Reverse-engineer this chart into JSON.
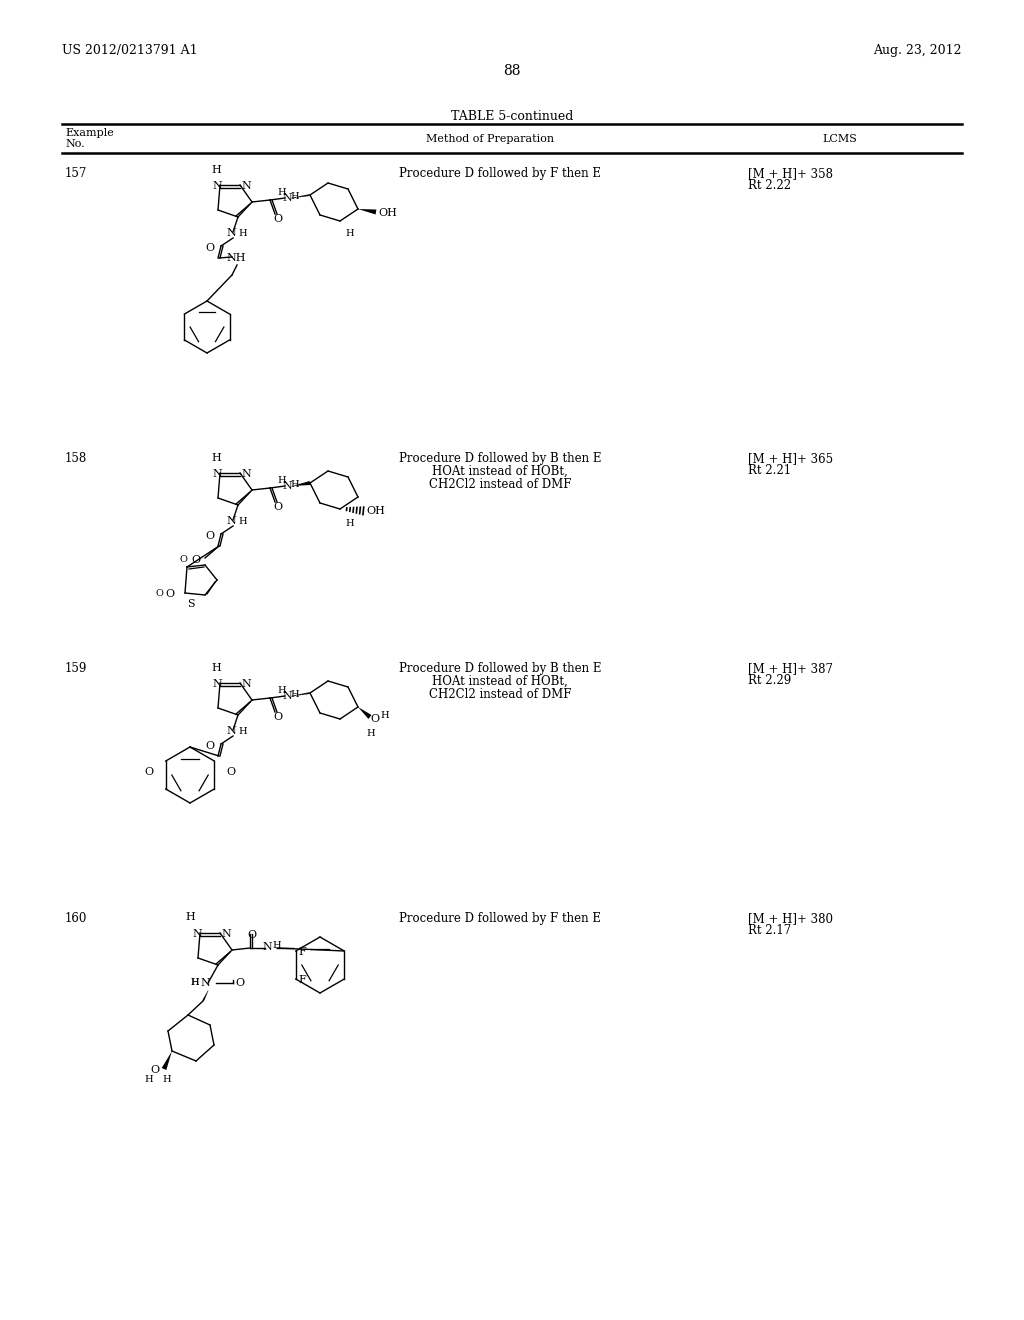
{
  "background_color": "#ffffff",
  "header_left": "US 2012/0213791 A1",
  "header_right": "Aug. 23, 2012",
  "page_number": "88",
  "table_title": "TABLE 5-continued",
  "rows": [
    {
      "example": "157",
      "method_lines": [
        "Procedure D followed by F then E"
      ],
      "lcms1": "[M + H]+ 358",
      "lcms2": "Rt 2.22"
    },
    {
      "example": "158",
      "method_lines": [
        "Procedure D followed by B then E",
        "HOAt instead of HOBt,",
        "CH2Cl2 instead of DMF"
      ],
      "lcms1": "[M + H]+ 365",
      "lcms2": "Rt 2.21"
    },
    {
      "example": "159",
      "method_lines": [
        "Procedure D followed by B then E",
        "HOAt instead of HOBt,",
        "CH2Cl2 instead of DMF"
      ],
      "lcms1": "[M + H]+ 387",
      "lcms2": "Rt 2.29"
    },
    {
      "example": "160",
      "method_lines": [
        "Procedure D followed by F then E"
      ],
      "lcms1": "[M + H]+ 380",
      "lcms2": "Rt 2.17"
    }
  ]
}
